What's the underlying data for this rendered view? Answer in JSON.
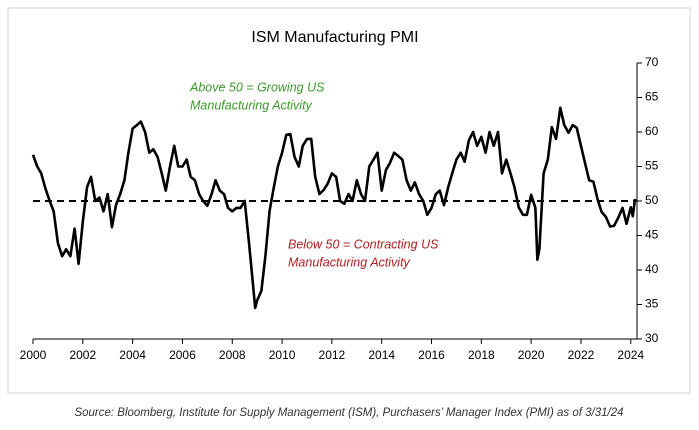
{
  "chart_data": {
    "type": "line",
    "title": "ISM Manufacturing PMI",
    "x": [
      2000.0,
      2000.17,
      2000.33,
      2000.5,
      2000.67,
      2000.83,
      2001.0,
      2001.17,
      2001.33,
      2001.5,
      2001.67,
      2001.83,
      2002.0,
      2002.17,
      2002.33,
      2002.5,
      2002.67,
      2002.83,
      2003.0,
      2003.17,
      2003.33,
      2003.5,
      2003.67,
      2003.83,
      2004.0,
      2004.17,
      2004.33,
      2004.5,
      2004.67,
      2004.83,
      2005.0,
      2005.17,
      2005.33,
      2005.5,
      2005.67,
      2005.83,
      2006.0,
      2006.17,
      2006.33,
      2006.5,
      2006.67,
      2006.83,
      2007.0,
      2007.17,
      2007.33,
      2007.5,
      2007.67,
      2007.83,
      2008.0,
      2008.17,
      2008.33,
      2008.5,
      2008.67,
      2008.83,
      2008.92,
      2009.0,
      2009.17,
      2009.33,
      2009.5,
      2009.67,
      2009.83,
      2010.0,
      2010.17,
      2010.33,
      2010.5,
      2010.67,
      2010.83,
      2011.0,
      2011.17,
      2011.33,
      2011.5,
      2011.67,
      2011.83,
      2012.0,
      2012.17,
      2012.33,
      2012.5,
      2012.67,
      2012.83,
      2013.0,
      2013.17,
      2013.33,
      2013.5,
      2013.67,
      2013.83,
      2014.0,
      2014.17,
      2014.33,
      2014.5,
      2014.67,
      2014.83,
      2015.0,
      2015.17,
      2015.33,
      2015.5,
      2015.67,
      2015.83,
      2016.0,
      2016.17,
      2016.33,
      2016.5,
      2016.67,
      2016.83,
      2017.0,
      2017.17,
      2017.33,
      2017.5,
      2017.67,
      2017.83,
      2018.0,
      2018.17,
      2018.33,
      2018.5,
      2018.67,
      2018.83,
      2019.0,
      2019.17,
      2019.33,
      2019.5,
      2019.67,
      2019.83,
      2020.0,
      2020.17,
      2020.25,
      2020.33,
      2020.5,
      2020.67,
      2020.83,
      2021.0,
      2021.17,
      2021.33,
      2021.5,
      2021.67,
      2021.83,
      2022.0,
      2022.17,
      2022.33,
      2022.5,
      2022.67,
      2022.83,
      2023.0,
      2023.17,
      2023.33,
      2023.5,
      2023.67,
      2023.83,
      2024.0,
      2024.08,
      2024.17
    ],
    "values": [
      56.7,
      55,
      54,
      51.8,
      50,
      48.5,
      43.9,
      42,
      43,
      42,
      46,
      40.9,
      47,
      52,
      53.5,
      50,
      50.5,
      48.5,
      51,
      46.2,
      49.4,
      51,
      53,
      57,
      60.5,
      61,
      61.5,
      60,
      57,
      57.5,
      56.4,
      54,
      51.5,
      55,
      58,
      55,
      55,
      56,
      53.5,
      53,
      51,
      50,
      49.3,
      51,
      53,
      51.5,
      51,
      49,
      48.5,
      49,
      49,
      50,
      44,
      38,
      34.5,
      35.6,
      37,
      42,
      48.6,
      52,
      55,
      57,
      59.6,
      59.7,
      56.4,
      55,
      58,
      59,
      59,
      53.5,
      51,
      51.6,
      52.5,
      54,
      53.5,
      50,
      49.6,
      51,
      50,
      53,
      51,
      50,
      55,
      56,
      57,
      51.5,
      54.5,
      55.5,
      57,
      56.5,
      56,
      53,
      51.5,
      52.7,
      51,
      50,
      48,
      49,
      51,
      51.5,
      49.4,
      52,
      54,
      56,
      57,
      55.7,
      58.8,
      60,
      58,
      59.3,
      57,
      60,
      58,
      60,
      54,
      56,
      54,
      52,
      49.1,
      48,
      48,
      50.9,
      49,
      41.5,
      43,
      54,
      56,
      60.7,
      59,
      63.5,
      61,
      59.9,
      61,
      60.6,
      58,
      55.4,
      53,
      52.8,
      50.2,
      48.4,
      47.7,
      46.3,
      46.4,
      47.6,
      49,
      46.7,
      49.1,
      47.8,
      50.3
    ],
    "color": "#000000",
    "xlim": [
      2000,
      2024.25
    ],
    "xticks": [
      2000,
      2002,
      2004,
      2006,
      2008,
      2010,
      2012,
      2014,
      2016,
      2018,
      2020,
      2022,
      2024
    ],
    "ylim": [
      30,
      70
    ],
    "yticks": [
      30,
      35,
      40,
      45,
      50,
      55,
      60,
      65,
      70
    ],
    "reference_line": 50,
    "annotations": [
      {
        "text": "Above 50 = Growing US",
        "color": "#3a9a2a"
      },
      {
        "text": "Manufacturing Activity",
        "color": "#3a9a2a"
      },
      {
        "text": "Below 50 = Contracting US",
        "color": "#b02020"
      },
      {
        "text": "Manufacturing Activity",
        "color": "#b02020"
      }
    ],
    "source": "Source: Bloomberg, Institute for Supply Management (ISM), Purchasers’ Manager Index (PMI) as of 3/31/24"
  }
}
